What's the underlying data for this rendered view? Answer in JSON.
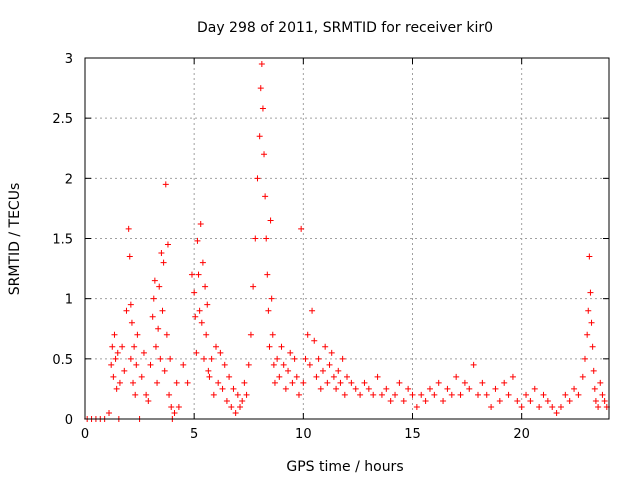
{
  "chart_data": {
    "type": "scatter",
    "title": "Day 298 of 2011, SRMTID for receiver kir0",
    "xlabel": "GPS time / hours",
    "ylabel": "SRMTID / TECUs",
    "xlim": [
      0,
      24
    ],
    "ylim": [
      0,
      3
    ],
    "xticks": [
      0,
      5,
      10,
      15,
      20
    ],
    "yticks": [
      0,
      0.5,
      1,
      1.5,
      2,
      2.5,
      3
    ],
    "xtick_labels": [
      "0",
      "5",
      "10",
      "15",
      "20"
    ],
    "ytick_labels": [
      "0",
      "0.5",
      "1",
      "1.5",
      "2",
      "2.5",
      "3"
    ],
    "grid": true,
    "marker": "+",
    "color": "#ff0000",
    "series": [
      {
        "name": "SRMTID",
        "x": [
          0.1,
          0.3,
          0.5,
          0.7,
          0.9,
          1.1,
          1.2,
          1.25,
          1.3,
          1.35,
          1.4,
          1.45,
          1.5,
          1.55,
          1.6,
          1.7,
          1.8,
          1.9,
          2.0,
          2.05,
          2.1,
          2.1,
          2.15,
          2.2,
          2.25,
          2.3,
          2.35,
          2.4,
          2.5,
          2.6,
          2.7,
          2.8,
          2.9,
          3.0,
          3.1,
          3.15,
          3.2,
          3.25,
          3.3,
          3.35,
          3.4,
          3.45,
          3.5,
          3.55,
          3.6,
          3.65,
          3.7,
          3.75,
          3.8,
          3.85,
          3.9,
          3.95,
          4.0,
          4.1,
          4.2,
          4.3,
          4.5,
          4.7,
          4.9,
          5.0,
          5.05,
          5.1,
          5.15,
          5.2,
          5.25,
          5.3,
          5.35,
          5.4,
          5.45,
          5.5,
          5.55,
          5.6,
          5.65,
          5.7,
          5.8,
          5.9,
          6.0,
          6.1,
          6.2,
          6.3,
          6.4,
          6.5,
          6.6,
          6.7,
          6.8,
          6.9,
          7.0,
          7.1,
          7.2,
          7.3,
          7.4,
          7.5,
          7.6,
          7.7,
          7.8,
          7.9,
          8.0,
          8.05,
          8.1,
          8.15,
          8.2,
          8.25,
          8.3,
          8.35,
          8.4,
          8.45,
          8.5,
          8.55,
          8.6,
          8.65,
          8.7,
          8.8,
          8.9,
          9.0,
          9.1,
          9.2,
          9.3,
          9.4,
          9.5,
          9.6,
          9.7,
          9.8,
          9.9,
          10.0,
          10.1,
          10.2,
          10.3,
          10.4,
          10.5,
          10.6,
          10.7,
          10.8,
          10.9,
          11.0,
          11.1,
          11.2,
          11.3,
          11.4,
          11.5,
          11.6,
          11.7,
          11.8,
          11.9,
          12.0,
          12.2,
          12.4,
          12.6,
          12.8,
          13.0,
          13.2,
          13.4,
          13.6,
          13.8,
          14.0,
          14.2,
          14.4,
          14.6,
          14.8,
          15.0,
          15.2,
          15.4,
          15.6,
          15.8,
          16.0,
          16.2,
          16.4,
          16.6,
          16.8,
          17.0,
          17.2,
          17.4,
          17.6,
          17.8,
          18.0,
          18.2,
          18.4,
          18.6,
          18.8,
          19.0,
          19.2,
          19.4,
          19.6,
          19.8,
          20.0,
          20.2,
          20.4,
          20.6,
          20.8,
          21.0,
          21.2,
          21.4,
          21.6,
          21.8,
          22.0,
          22.2,
          22.4,
          22.6,
          22.8,
          22.9,
          23.0,
          23.05,
          23.1,
          23.15,
          23.2,
          23.25,
          23.3,
          23.35,
          23.4,
          23.5,
          23.6,
          23.7,
          23.8,
          23.9
        ],
        "y": [
          0.0,
          0.0,
          0.0,
          0.0,
          0.0,
          0.05,
          0.45,
          0.6,
          0.35,
          0.7,
          0.5,
          0.25,
          0.55,
          0.0,
          0.3,
          0.6,
          0.4,
          0.9,
          1.58,
          1.35,
          0.95,
          0.5,
          0.8,
          0.3,
          0.6,
          0.2,
          0.45,
          0.7,
          0.0,
          0.35,
          0.55,
          0.2,
          0.15,
          0.45,
          0.85,
          1.0,
          1.15,
          0.6,
          0.3,
          0.75,
          1.1,
          0.5,
          1.38,
          0.9,
          1.3,
          0.4,
          1.95,
          0.7,
          1.45,
          0.2,
          0.5,
          0.1,
          0.0,
          0.05,
          0.3,
          0.1,
          0.45,
          0.3,
          1.2,
          1.05,
          0.85,
          0.55,
          1.48,
          1.2,
          0.9,
          1.62,
          0.8,
          1.3,
          0.5,
          1.1,
          0.7,
          0.95,
          0.4,
          0.35,
          0.5,
          0.2,
          0.6,
          0.3,
          0.55,
          0.25,
          0.45,
          0.15,
          0.35,
          0.1,
          0.25,
          0.05,
          0.2,
          0.1,
          0.15,
          0.3,
          0.2,
          0.45,
          0.7,
          1.1,
          1.5,
          2.0,
          2.35,
          2.75,
          2.95,
          2.58,
          2.2,
          1.85,
          1.5,
          1.2,
          0.9,
          0.6,
          1.65,
          1.0,
          0.7,
          0.45,
          0.3,
          0.5,
          0.35,
          0.6,
          0.45,
          0.25,
          0.4,
          0.55,
          0.3,
          0.5,
          0.35,
          0.2,
          1.58,
          0.3,
          0.5,
          0.7,
          0.45,
          0.9,
          0.65,
          0.35,
          0.5,
          0.25,
          0.4,
          0.6,
          0.3,
          0.45,
          0.55,
          0.35,
          0.25,
          0.4,
          0.3,
          0.5,
          0.2,
          0.35,
          0.3,
          0.25,
          0.2,
          0.3,
          0.25,
          0.2,
          0.35,
          0.2,
          0.25,
          0.15,
          0.2,
          0.3,
          0.15,
          0.25,
          0.2,
          0.1,
          0.2,
          0.15,
          0.25,
          0.2,
          0.3,
          0.15,
          0.25,
          0.2,
          0.35,
          0.2,
          0.3,
          0.25,
          0.45,
          0.2,
          0.3,
          0.2,
          0.1,
          0.25,
          0.15,
          0.3,
          0.2,
          0.35,
          0.15,
          0.1,
          0.2,
          0.15,
          0.25,
          0.1,
          0.2,
          0.15,
          0.1,
          0.05,
          0.1,
          0.2,
          0.15,
          0.25,
          0.2,
          0.35,
          0.5,
          0.7,
          0.9,
          1.35,
          1.05,
          0.8,
          0.6,
          0.4,
          0.25,
          0.15,
          0.1,
          0.3,
          0.2,
          0.15,
          0.1
        ]
      }
    ]
  }
}
